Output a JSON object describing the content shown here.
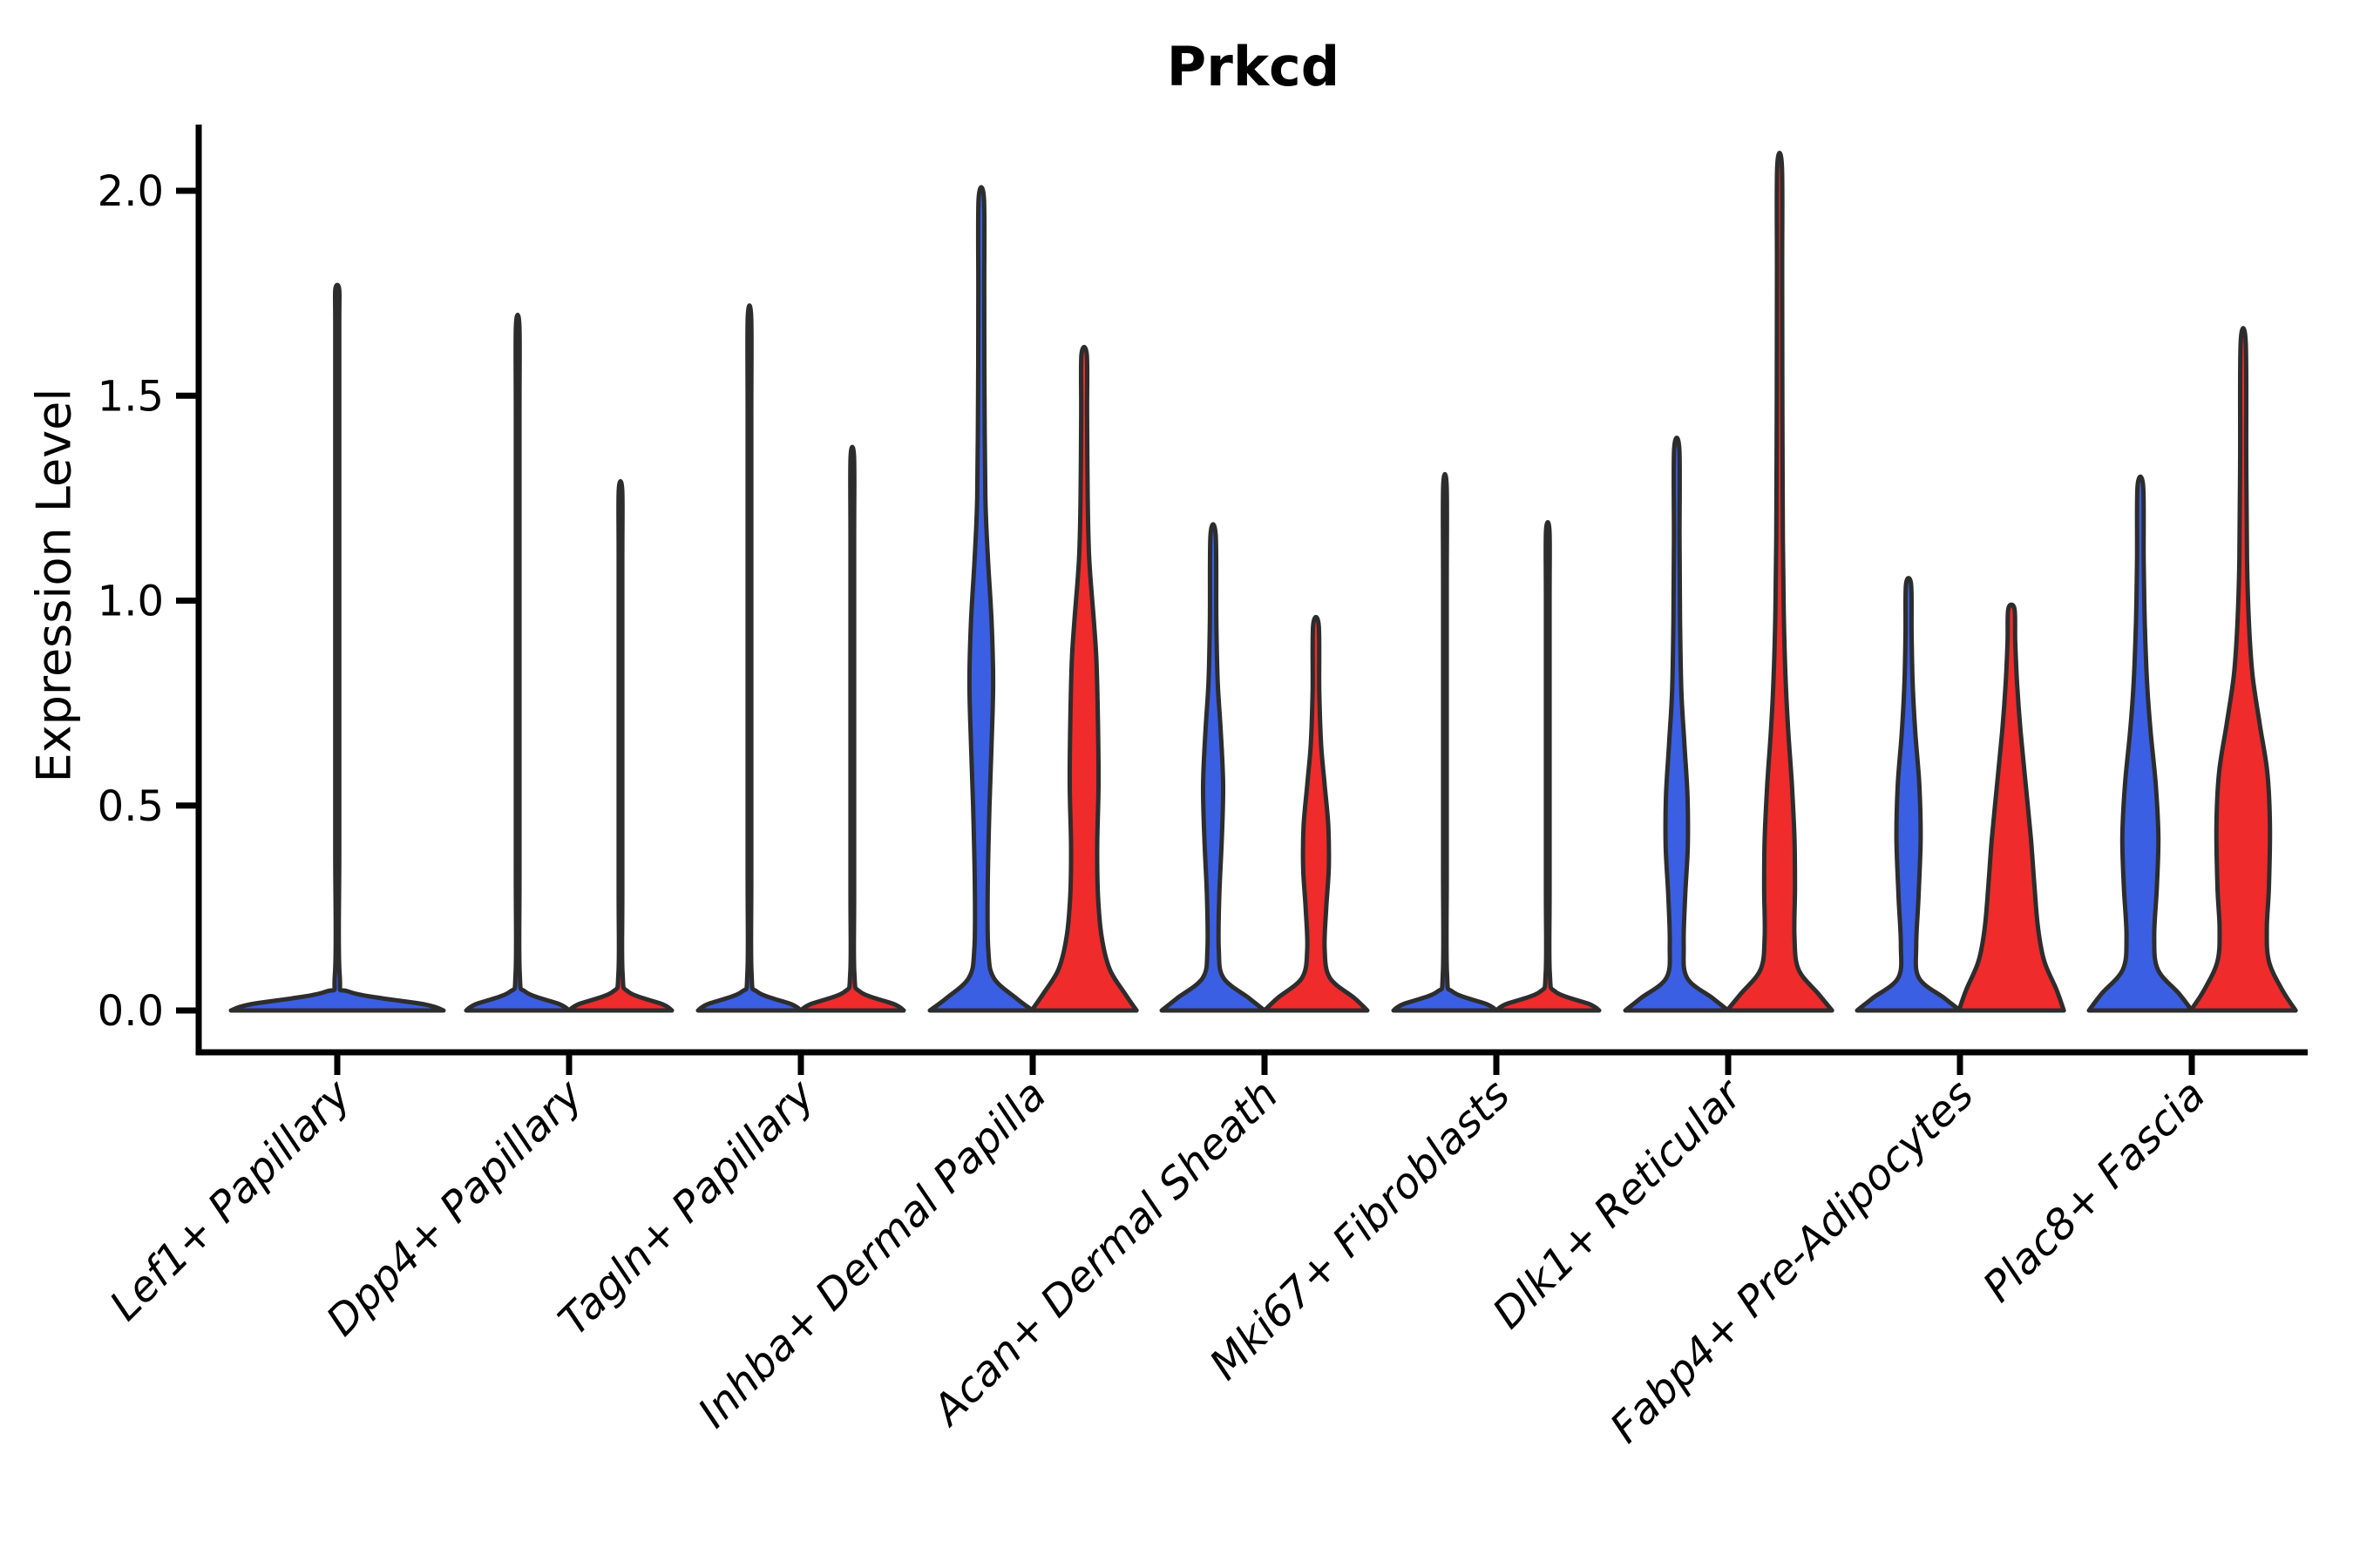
{
  "chart_data": {
    "type": "violin",
    "title": "Prkcd",
    "ylabel": "Expression Level",
    "xlabel": "",
    "grid": false,
    "legend": "none",
    "ylim": [
      -0.1,
      2.16
    ],
    "ytick_values": [
      0.0,
      0.5,
      1.0,
      1.5,
      2.0
    ],
    "ytick_labels": [
      "0.0",
      "0.5",
      "1.0",
      "1.5",
      "2.0"
    ],
    "categories": [
      "Lef1+ Papillary",
      "Dpp4+ Papillary",
      "Tagln+ Papillary",
      "Inhba+ Dermal Papilla",
      "Acan+ Dermal Sheath",
      "Mki67+ Fibroblasts",
      "Dlk1+ Reticular",
      "Fabp4+ Pre-Adipocytes",
      "Plac8+ Fascia"
    ],
    "series_colors": {
      "blue": "#3b5fe3",
      "red": "#ef2b2b"
    },
    "outline_color": "#2d2d2d",
    "axis_color": "#000000",
    "violins": [
      {
        "category_index": 0,
        "split": "center",
        "color": "blue",
        "max_expression": 1.76,
        "profile": [
          [
            0,
            1
          ],
          [
            0.015,
            0.82
          ],
          [
            0.045,
            0.12
          ],
          [
            0.09,
            0.022
          ],
          [
            0.4,
            0.019
          ],
          [
            0.9,
            0.019
          ],
          [
            1.4,
            0.019
          ],
          [
            1.68,
            0.019
          ],
          [
            1.76,
            0.018
          ]
        ]
      },
      {
        "category_index": 1,
        "split": "blue",
        "color": "blue",
        "max_expression": 1.67,
        "profile": [
          [
            0,
            1
          ],
          [
            0.015,
            0.82
          ],
          [
            0.045,
            0.16
          ],
          [
            0.09,
            0.04
          ],
          [
            0.35,
            0.036
          ],
          [
            0.9,
            0.036
          ],
          [
            1.45,
            0.036
          ],
          [
            1.67,
            0.034
          ]
        ]
      },
      {
        "category_index": 1,
        "split": "red",
        "color": "red",
        "max_expression": 1.27,
        "profile": [
          [
            0,
            1
          ],
          [
            0.015,
            0.82
          ],
          [
            0.045,
            0.16
          ],
          [
            0.09,
            0.04
          ],
          [
            0.3,
            0.036
          ],
          [
            0.7,
            0.036
          ],
          [
            1.1,
            0.036
          ],
          [
            1.27,
            0.034
          ]
        ]
      },
      {
        "category_index": 2,
        "split": "blue",
        "color": "blue",
        "max_expression": 1.69,
        "profile": [
          [
            0,
            1
          ],
          [
            0.015,
            0.82
          ],
          [
            0.045,
            0.16
          ],
          [
            0.09,
            0.04
          ],
          [
            0.35,
            0.036
          ],
          [
            0.9,
            0.036
          ],
          [
            1.45,
            0.036
          ],
          [
            1.69,
            0.034
          ]
        ]
      },
      {
        "category_index": 2,
        "split": "red",
        "color": "red",
        "max_expression": 1.35,
        "profile": [
          [
            0,
            1
          ],
          [
            0.015,
            0.82
          ],
          [
            0.045,
            0.16
          ],
          [
            0.09,
            0.04
          ],
          [
            0.3,
            0.036
          ],
          [
            0.75,
            0.036
          ],
          [
            1.15,
            0.036
          ],
          [
            1.35,
            0.034
          ]
        ]
      },
      {
        "category_index": 3,
        "split": "blue",
        "color": "blue",
        "max_expression": 1.98,
        "profile": [
          [
            0,
            1
          ],
          [
            0.03,
            0.68
          ],
          [
            0.08,
            0.24
          ],
          [
            0.15,
            0.135
          ],
          [
            0.3,
            0.125
          ],
          [
            0.5,
            0.16
          ],
          [
            0.65,
            0.2
          ],
          [
            0.8,
            0.23
          ],
          [
            0.95,
            0.2
          ],
          [
            1.1,
            0.13
          ],
          [
            1.25,
            0.08
          ],
          [
            1.5,
            0.062
          ],
          [
            1.75,
            0.058
          ],
          [
            1.98,
            0.052
          ]
        ]
      },
      {
        "category_index": 3,
        "split": "red",
        "color": "red",
        "max_expression": 1.6,
        "profile": [
          [
            0,
            1.02
          ],
          [
            0.04,
            0.8
          ],
          [
            0.1,
            0.5
          ],
          [
            0.18,
            0.34
          ],
          [
            0.28,
            0.27
          ],
          [
            0.4,
            0.255
          ],
          [
            0.55,
            0.28
          ],
          [
            0.7,
            0.27
          ],
          [
            0.85,
            0.24
          ],
          [
            0.95,
            0.19
          ],
          [
            1.1,
            0.1
          ],
          [
            1.25,
            0.07
          ],
          [
            1.45,
            0.058
          ],
          [
            1.6,
            0.052
          ]
        ]
      },
      {
        "category_index": 4,
        "split": "blue",
        "color": "blue",
        "max_expression": 1.16,
        "profile": [
          [
            0,
            1
          ],
          [
            0.03,
            0.7
          ],
          [
            0.08,
            0.2
          ],
          [
            0.15,
            0.11
          ],
          [
            0.28,
            0.12
          ],
          [
            0.42,
            0.17
          ],
          [
            0.55,
            0.195
          ],
          [
            0.68,
            0.15
          ],
          [
            0.8,
            0.09
          ],
          [
            0.95,
            0.062
          ],
          [
            1.16,
            0.05
          ]
        ]
      },
      {
        "category_index": 4,
        "split": "red",
        "color": "red",
        "max_expression": 0.94,
        "profile": [
          [
            0,
            1
          ],
          [
            0.03,
            0.75
          ],
          [
            0.08,
            0.27
          ],
          [
            0.15,
            0.17
          ],
          [
            0.25,
            0.2
          ],
          [
            0.35,
            0.25
          ],
          [
            0.45,
            0.24
          ],
          [
            0.55,
            0.17
          ],
          [
            0.65,
            0.1
          ],
          [
            0.78,
            0.065
          ],
          [
            0.94,
            0.055
          ]
        ]
      },
      {
        "category_index": 5,
        "split": "blue",
        "color": "blue",
        "max_expression": 1.28,
        "profile": [
          [
            0,
            1
          ],
          [
            0.015,
            0.82
          ],
          [
            0.045,
            0.16
          ],
          [
            0.09,
            0.04
          ],
          [
            0.35,
            0.036
          ],
          [
            0.7,
            0.036
          ],
          [
            1.05,
            0.036
          ],
          [
            1.28,
            0.034
          ]
        ]
      },
      {
        "category_index": 5,
        "split": "red",
        "color": "red",
        "max_expression": 1.17,
        "profile": [
          [
            0,
            1
          ],
          [
            0.015,
            0.82
          ],
          [
            0.045,
            0.16
          ],
          [
            0.09,
            0.04
          ],
          [
            0.3,
            0.036
          ],
          [
            0.65,
            0.036
          ],
          [
            1.0,
            0.036
          ],
          [
            1.17,
            0.034
          ]
        ]
      },
      {
        "category_index": 6,
        "split": "blue",
        "color": "blue",
        "max_expression": 1.37,
        "profile": [
          [
            0,
            1
          ],
          [
            0.03,
            0.7
          ],
          [
            0.08,
            0.2
          ],
          [
            0.16,
            0.135
          ],
          [
            0.28,
            0.165
          ],
          [
            0.4,
            0.215
          ],
          [
            0.52,
            0.21
          ],
          [
            0.65,
            0.15
          ],
          [
            0.78,
            0.09
          ],
          [
            0.95,
            0.065
          ],
          [
            1.15,
            0.055
          ],
          [
            1.37,
            0.05
          ]
        ]
      },
      {
        "category_index": 6,
        "split": "red",
        "color": "red",
        "max_expression": 2.06,
        "profile": [
          [
            0,
            1.02
          ],
          [
            0.04,
            0.76
          ],
          [
            0.1,
            0.37
          ],
          [
            0.18,
            0.29
          ],
          [
            0.3,
            0.3
          ],
          [
            0.42,
            0.29
          ],
          [
            0.55,
            0.24
          ],
          [
            0.68,
            0.17
          ],
          [
            0.8,
            0.12
          ],
          [
            0.95,
            0.085
          ],
          [
            1.15,
            0.065
          ],
          [
            1.5,
            0.055
          ],
          [
            1.8,
            0.05
          ],
          [
            2.06,
            0.046
          ]
        ]
      },
      {
        "category_index": 7,
        "split": "blue",
        "color": "blue",
        "max_expression": 1.04,
        "profile": [
          [
            0,
            1
          ],
          [
            0.03,
            0.7
          ],
          [
            0.08,
            0.2
          ],
          [
            0.16,
            0.15
          ],
          [
            0.28,
            0.195
          ],
          [
            0.42,
            0.235
          ],
          [
            0.55,
            0.21
          ],
          [
            0.68,
            0.13
          ],
          [
            0.8,
            0.08
          ],
          [
            0.92,
            0.06
          ],
          [
            1.04,
            0.05
          ]
        ]
      },
      {
        "category_index": 7,
        "split": "red",
        "color": "red",
        "max_expression": 0.98,
        "profile": [
          [
            0,
            1.02
          ],
          [
            0.05,
            0.88
          ],
          [
            0.12,
            0.64
          ],
          [
            0.2,
            0.52
          ],
          [
            0.3,
            0.45
          ],
          [
            0.42,
            0.38
          ],
          [
            0.55,
            0.28
          ],
          [
            0.68,
            0.18
          ],
          [
            0.8,
            0.11
          ],
          [
            0.9,
            0.075
          ],
          [
            0.98,
            0.06
          ]
        ]
      },
      {
        "category_index": 8,
        "split": "blue",
        "color": "blue",
        "max_expression": 1.28,
        "profile": [
          [
            0,
            1
          ],
          [
            0.04,
            0.76
          ],
          [
            0.1,
            0.34
          ],
          [
            0.18,
            0.27
          ],
          [
            0.3,
            0.32
          ],
          [
            0.42,
            0.35
          ],
          [
            0.55,
            0.3
          ],
          [
            0.68,
            0.2
          ],
          [
            0.8,
            0.13
          ],
          [
            0.95,
            0.085
          ],
          [
            1.1,
            0.065
          ],
          [
            1.28,
            0.055
          ]
        ]
      },
      {
        "category_index": 8,
        "split": "red",
        "color": "red",
        "max_expression": 1.63,
        "profile": [
          [
            0,
            1.02
          ],
          [
            0.05,
            0.76
          ],
          [
            0.12,
            0.5
          ],
          [
            0.2,
            0.46
          ],
          [
            0.3,
            0.5
          ],
          [
            0.45,
            0.52
          ],
          [
            0.58,
            0.47
          ],
          [
            0.7,
            0.32
          ],
          [
            0.82,
            0.18
          ],
          [
            0.95,
            0.11
          ],
          [
            1.1,
            0.075
          ],
          [
            1.35,
            0.06
          ],
          [
            1.63,
            0.05
          ]
        ]
      }
    ]
  }
}
